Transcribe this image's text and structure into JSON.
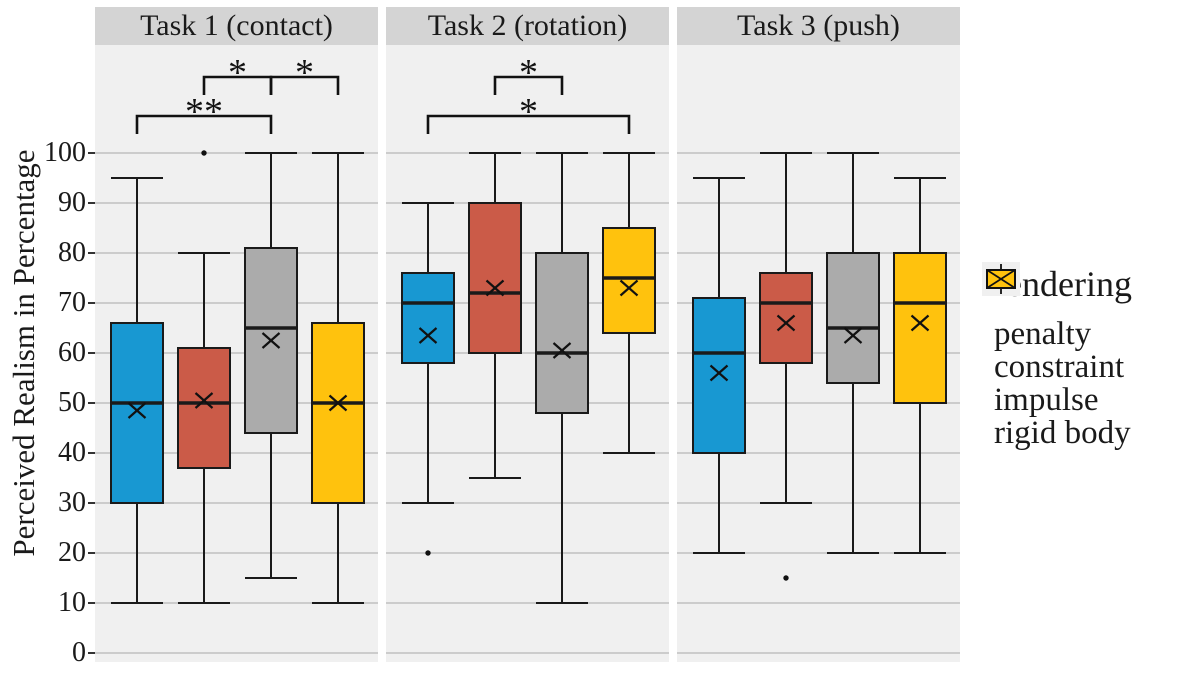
{
  "figure": {
    "ylabel": "Perceived Realism in Percentage",
    "legend": {
      "title": "Rendering",
      "items": [
        {
          "label": "penalty",
          "color": "#1898D2"
        },
        {
          "label": "constraint",
          "color": "#CB5B48"
        },
        {
          "label": "impulse",
          "color": "#ABABAB"
        },
        {
          "label": "rigid body",
          "color": "#FFC20D"
        }
      ]
    },
    "colors": {
      "panel_bg": "#F0F0F0",
      "strip_bg": "#D4D4D4",
      "gridline": "#CCCCCC",
      "box_stroke": "#1A1A1A",
      "text": "#1A1A1A"
    }
  },
  "chart_data": {
    "type": "boxplot",
    "ylabel": "Perceived Realism in Percentage",
    "ylim": [
      0,
      100
    ],
    "yticks": [
      0,
      10,
      20,
      30,
      40,
      50,
      60,
      70,
      80,
      90,
      100
    ],
    "series_order": [
      "penalty",
      "constraint",
      "impulse",
      "rigid body"
    ],
    "legend_position": "right",
    "grid": "major-horizontal",
    "panels": [
      {
        "title": "Task 1 (contact)",
        "boxes": [
          {
            "series": "penalty",
            "min": 10,
            "q1": 30,
            "median": 50,
            "mean": 48.5,
            "q3": 66,
            "max": 95,
            "outliers": []
          },
          {
            "series": "constraint",
            "min": 10,
            "q1": 37,
            "median": 50,
            "mean": 50.5,
            "q3": 61,
            "max": 80,
            "outliers": [
              100
            ]
          },
          {
            "series": "impulse",
            "min": 15,
            "q1": 44,
            "median": 65,
            "mean": 62.5,
            "q3": 81,
            "max": 100,
            "outliers": []
          },
          {
            "series": "rigid body",
            "min": 10,
            "q1": 30,
            "median": 50,
            "mean": 50,
            "q3": 66,
            "max": 100,
            "outliers": []
          }
        ],
        "significance": [
          {
            "from": 0,
            "to": 2,
            "label": "**",
            "row": 1
          },
          {
            "from": 1,
            "to": 2,
            "label": "*",
            "row": 0
          },
          {
            "from": 2,
            "to": 3,
            "label": "*",
            "row": 0
          }
        ]
      },
      {
        "title": "Task 2 (rotation)",
        "boxes": [
          {
            "series": "penalty",
            "min": 30,
            "q1": 58,
            "median": 70,
            "mean": 63.5,
            "q3": 76,
            "max": 90,
            "outliers": [
              20
            ]
          },
          {
            "series": "constraint",
            "min": 35,
            "q1": 60,
            "median": 72,
            "mean": 73,
            "q3": 90,
            "max": 100,
            "outliers": []
          },
          {
            "series": "impulse",
            "min": 10,
            "q1": 48,
            "median": 60,
            "mean": 60.5,
            "q3": 80,
            "max": 100,
            "outliers": []
          },
          {
            "series": "rigid body",
            "min": 40,
            "q1": 64,
            "median": 75,
            "mean": 73,
            "q3": 85,
            "max": 100,
            "outliers": []
          }
        ],
        "significance": [
          {
            "from": 1,
            "to": 2,
            "label": "*",
            "row": 0
          },
          {
            "from": 0,
            "to": 3,
            "label": "*",
            "row": 1
          }
        ]
      },
      {
        "title": "Task 3 (push)",
        "boxes": [
          {
            "series": "penalty",
            "min": 20,
            "q1": 40,
            "median": 60,
            "mean": 56,
            "q3": 71,
            "max": 95,
            "outliers": []
          },
          {
            "series": "constraint",
            "min": 30,
            "q1": 58,
            "median": 70,
            "mean": 66,
            "q3": 76,
            "max": 100,
            "outliers": [
              15
            ]
          },
          {
            "series": "impulse",
            "min": 20,
            "q1": 54,
            "median": 65,
            "mean": 63.5,
            "q3": 80,
            "max": 100,
            "outliers": []
          },
          {
            "series": "rigid body",
            "min": 20,
            "q1": 50,
            "median": 70,
            "mean": 66,
            "q3": 80,
            "max": 95,
            "outliers": []
          }
        ],
        "significance": []
      }
    ]
  }
}
